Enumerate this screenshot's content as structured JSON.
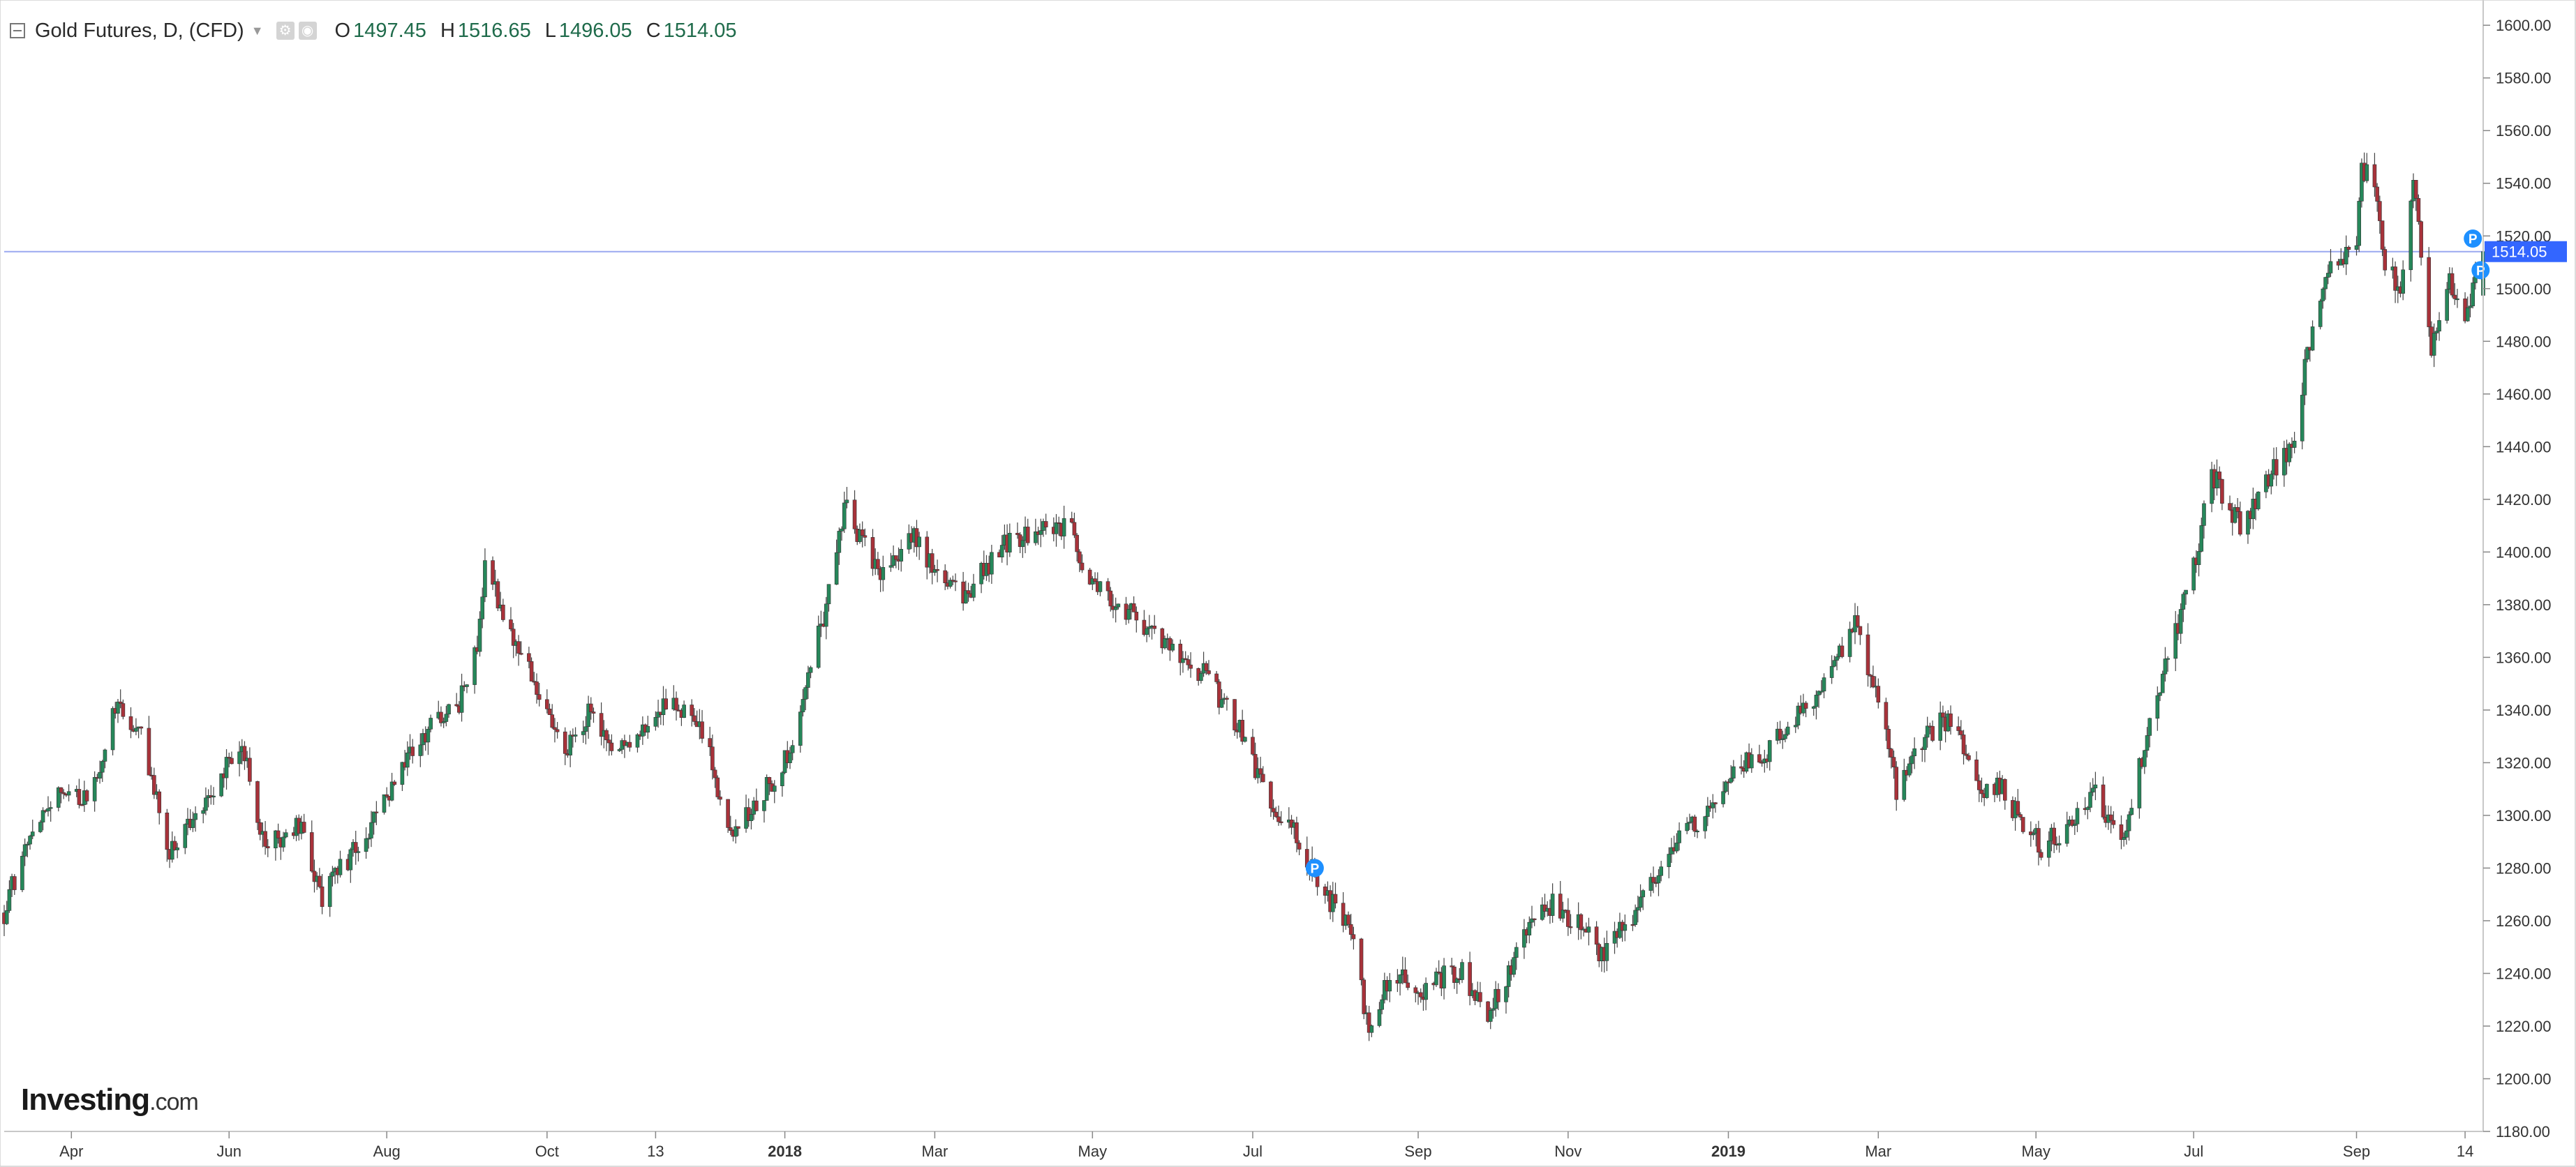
{
  "legend": {
    "title": "Gold Futures, D, (CFD)",
    "open_label": "O",
    "open": "1497.45",
    "high_label": "H",
    "high": "1516.65",
    "low_label": "L",
    "low": "1496.05",
    "close_label": "C",
    "close": "1514.05"
  },
  "logo": {
    "brand": "Investing",
    "suffix": ".com"
  },
  "colors": {
    "up": "#26875a",
    "down": "#a8323a",
    "axis": "#c8c8c8",
    "price_line": "#9aa8f0",
    "price_badge": "#3366ff",
    "marker": "#1e90ff"
  },
  "icons": [
    "collapse-icon",
    "chevron-down-icon",
    "settings-icon",
    "eye-icon"
  ],
  "chart_data": {
    "type": "candlestick",
    "title": "Gold Futures, D, (CFD)",
    "xlabel": "",
    "ylabel": "",
    "x_range": [
      "2017-03-06",
      "2019-10-21"
    ],
    "ylim": [
      1180,
      1608
    ],
    "y_ticks": [
      "1180.00",
      "1200.00",
      "1220.00",
      "1240.00",
      "1260.00",
      "1280.00",
      "1300.00",
      "1320.00",
      "1340.00",
      "1360.00",
      "1380.00",
      "1400.00",
      "1420.00",
      "1440.00",
      "1460.00",
      "1480.00",
      "1500.00",
      "1520.00",
      "1540.00",
      "1560.00",
      "1580.00",
      "1600.00"
    ],
    "x_ticks": [
      {
        "date": "2017-04-01",
        "label": "Apr",
        "bold": false
      },
      {
        "date": "2017-06-01",
        "label": "Jun",
        "bold": false
      },
      {
        "date": "2017-08-01",
        "label": "Aug",
        "bold": false
      },
      {
        "date": "2017-10-02",
        "label": "Oct",
        "bold": false
      },
      {
        "date": "2017-11-13",
        "label": "13",
        "bold": false
      },
      {
        "date": "2018-01-02",
        "label": "2018",
        "bold": true
      },
      {
        "date": "2018-03-01",
        "label": "Mar",
        "bold": false
      },
      {
        "date": "2018-05-01",
        "label": "May",
        "bold": false
      },
      {
        "date": "2018-07-02",
        "label": "Jul",
        "bold": false
      },
      {
        "date": "2018-09-04",
        "label": "Sep",
        "bold": false
      },
      {
        "date": "2018-11-01",
        "label": "Nov",
        "bold": false
      },
      {
        "date": "2019-01-02",
        "label": "2019",
        "bold": true
      },
      {
        "date": "2019-03-01",
        "label": "Mar",
        "bold": false
      },
      {
        "date": "2019-05-01",
        "label": "May",
        "bold": false
      },
      {
        "date": "2019-07-01",
        "label": "Jul",
        "bold": false
      },
      {
        "date": "2019-09-02",
        "label": "Sep",
        "bold": false
      },
      {
        "date": "2019-10-14",
        "label": "14",
        "bold": false
      }
    ],
    "last_price": 1514.05,
    "last_price_label": "1514.05",
    "markers": [
      {
        "date": "2018-07-26",
        "price": 1280,
        "label": "P"
      },
      {
        "date": "2019-10-17",
        "price": 1519,
        "label": "P"
      },
      {
        "date": "2019-10-20",
        "price": 1507,
        "label": "P"
      }
    ],
    "close_path": [
      [
        "2017-03-06",
        1263
      ],
      [
        "2017-03-15",
        1292
      ],
      [
        "2017-03-28",
        1313
      ],
      [
        "2017-04-07",
        1304
      ],
      [
        "2017-04-18",
        1341
      ],
      [
        "2017-04-28",
        1330
      ],
      [
        "2017-05-09",
        1284
      ],
      [
        "2017-05-19",
        1302
      ],
      [
        "2017-06-06",
        1326
      ],
      [
        "2017-06-15",
        1288
      ],
      [
        "2017-06-28",
        1297
      ],
      [
        "2017-07-07",
        1267
      ],
      [
        "2017-07-12",
        1276
      ],
      [
        "2017-07-24",
        1294
      ],
      [
        "2017-08-04",
        1312
      ],
      [
        "2017-08-14",
        1330
      ],
      [
        "2017-08-28",
        1340
      ],
      [
        "2017-09-05",
        1362
      ],
      [
        "2017-09-08",
        1396
      ],
      [
        "2017-09-19",
        1366
      ],
      [
        "2017-10-02",
        1340
      ],
      [
        "2017-10-09",
        1324
      ],
      [
        "2017-10-20",
        1341
      ],
      [
        "2017-10-27",
        1322
      ],
      [
        "2017-11-07",
        1330
      ],
      [
        "2017-11-17",
        1344
      ],
      [
        "2017-11-27",
        1340
      ],
      [
        "2017-12-05",
        1319
      ],
      [
        "2017-12-12",
        1292
      ],
      [
        "2017-12-26",
        1310
      ],
      [
        "2018-01-05",
        1326
      ],
      [
        "2018-01-17",
        1376
      ],
      [
        "2018-01-25",
        1418
      ],
      [
        "2018-02-08",
        1390
      ],
      [
        "2018-02-20",
        1406
      ],
      [
        "2018-03-02",
        1392
      ],
      [
        "2018-03-12",
        1381
      ],
      [
        "2018-03-26",
        1402
      ],
      [
        "2018-04-11",
        1410
      ],
      [
        "2018-04-23",
        1408
      ],
      [
        "2018-05-01",
        1386
      ],
      [
        "2018-05-15",
        1378
      ],
      [
        "2018-05-25",
        1368
      ],
      [
        "2018-06-06",
        1358
      ],
      [
        "2018-06-15",
        1352
      ],
      [
        "2018-06-28",
        1330
      ],
      [
        "2018-07-09",
        1303
      ],
      [
        "2018-07-19",
        1292
      ],
      [
        "2018-07-31",
        1268
      ],
      [
        "2018-08-10",
        1256
      ],
      [
        "2018-08-16",
        1215
      ],
      [
        "2018-08-24",
        1240
      ],
      [
        "2018-09-06",
        1234
      ],
      [
        "2018-09-20",
        1242
      ],
      [
        "2018-10-01",
        1224
      ],
      [
        "2018-10-11",
        1245
      ],
      [
        "2018-10-18",
        1262
      ],
      [
        "2018-10-26",
        1266
      ],
      [
        "2018-11-08",
        1256
      ],
      [
        "2018-11-13",
        1246
      ],
      [
        "2018-11-26",
        1262
      ],
      [
        "2018-12-11",
        1288
      ],
      [
        "2018-12-24",
        1300
      ],
      [
        "2019-01-04",
        1320
      ],
      [
        "2019-01-15",
        1320
      ],
      [
        "2019-01-25",
        1334
      ],
      [
        "2019-02-05",
        1346
      ],
      [
        "2019-02-20",
        1372
      ],
      [
        "2019-03-01",
        1344
      ],
      [
        "2019-03-08",
        1310
      ],
      [
        "2019-03-20",
        1330
      ],
      [
        "2019-03-29",
        1338
      ],
      [
        "2019-04-09",
        1310
      ],
      [
        "2019-04-18",
        1310
      ],
      [
        "2019-04-24",
        1300
      ],
      [
        "2019-05-03",
        1288
      ],
      [
        "2019-05-15",
        1298
      ],
      [
        "2019-05-23",
        1310
      ],
      [
        "2019-06-03",
        1290
      ],
      [
        "2019-06-07",
        1300
      ],
      [
        "2019-06-14",
        1340
      ],
      [
        "2019-06-21",
        1358
      ],
      [
        "2019-07-02",
        1398
      ],
      [
        "2019-07-08",
        1430
      ],
      [
        "2019-07-19",
        1410
      ],
      [
        "2019-07-31",
        1430
      ],
      [
        "2019-08-08",
        1438
      ],
      [
        "2019-08-14",
        1475
      ],
      [
        "2019-08-22",
        1510
      ],
      [
        "2019-09-02",
        1515
      ],
      [
        "2019-09-04",
        1545
      ],
      [
        "2019-09-09",
        1540
      ],
      [
        "2019-09-13",
        1510
      ],
      [
        "2019-09-19",
        1498
      ],
      [
        "2019-09-24",
        1540
      ],
      [
        "2019-10-01",
        1478
      ],
      [
        "2019-10-07",
        1504
      ],
      [
        "2019-10-14",
        1490
      ],
      [
        "2019-10-21",
        1514
      ]
    ]
  }
}
